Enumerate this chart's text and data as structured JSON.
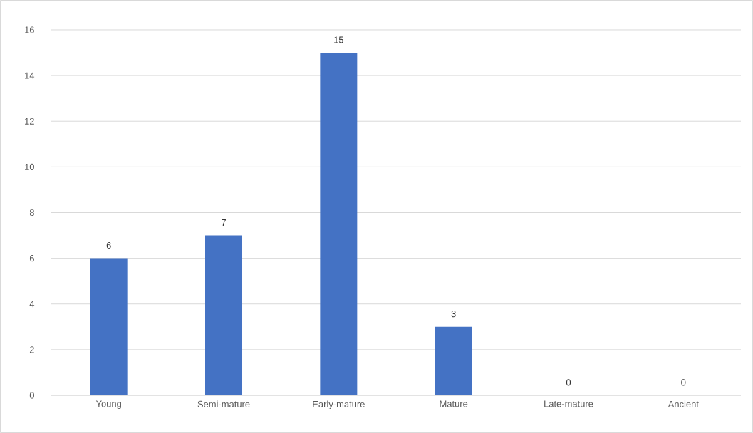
{
  "chart_data": {
    "type": "bar",
    "categories": [
      "Young",
      "Semi-mature",
      "Early-mature",
      "Mature",
      "Late-mature",
      "Ancient"
    ],
    "values": [
      6,
      7,
      15,
      3,
      0,
      0
    ],
    "color": "#4472c4",
    "ylim": [
      0,
      16
    ],
    "yticks": [
      0,
      2,
      4,
      6,
      8,
      10,
      12,
      14,
      16
    ],
    "grid": "y",
    "data_labels": true
  }
}
